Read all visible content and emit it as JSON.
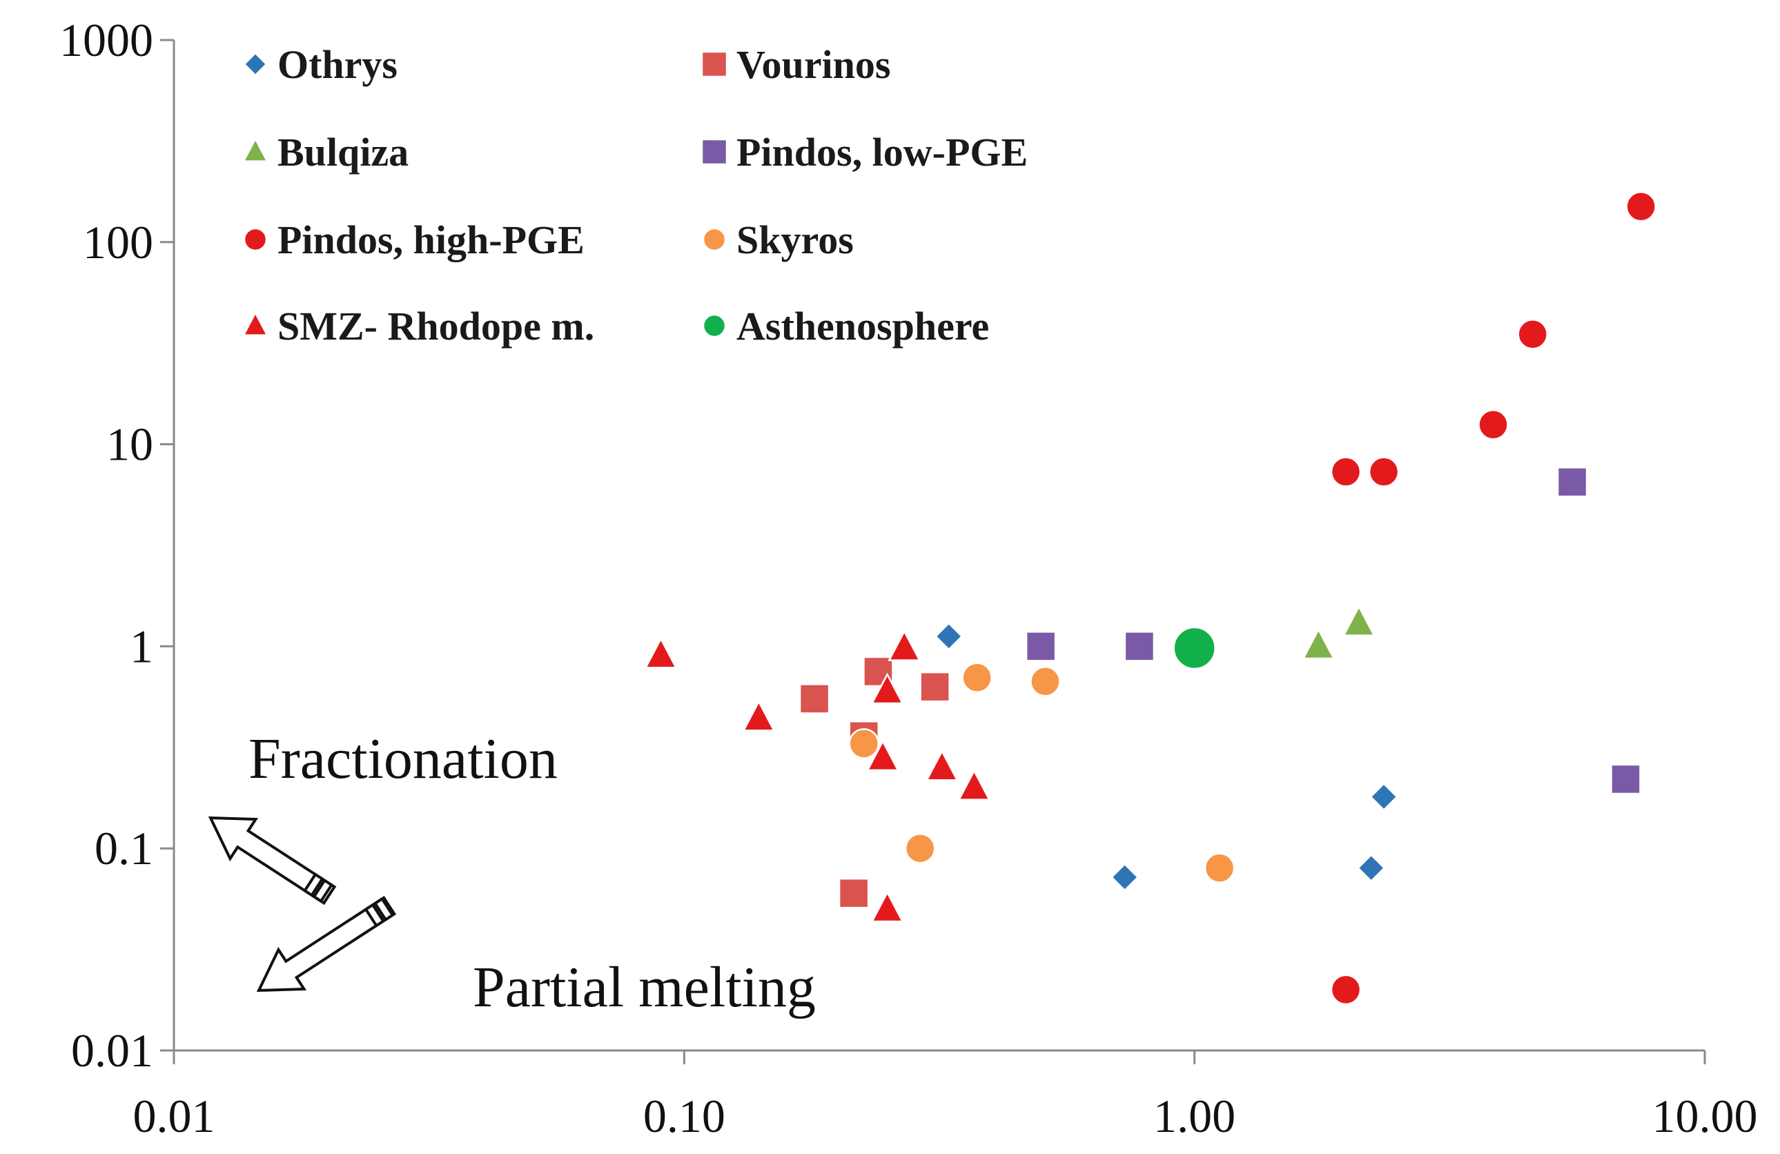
{
  "chart_data": {
    "type": "scatter",
    "title": "",
    "xlabel": "",
    "ylabel": "",
    "x_scale": "log",
    "y_scale": "log",
    "xlim": [
      0.01,
      10
    ],
    "ylim": [
      0.01,
      1000
    ],
    "x_ticks": [
      0.01,
      0.1,
      1,
      10
    ],
    "x_tick_labels": [
      "0.01",
      "0.10",
      "1.00",
      "10.00"
    ],
    "y_ticks": [
      0.01,
      0.1,
      1,
      10,
      100,
      1000
    ],
    "y_tick_labels": [
      "0.01",
      "0.1",
      "1",
      "10",
      "100",
      "1000"
    ],
    "grid": false,
    "legend_position": "top-left",
    "series": [
      {
        "name": "Othrys",
        "marker": "diamond",
        "color": "#2e75b6",
        "points": [
          [
            0.33,
            1.12
          ],
          [
            0.73,
            0.072
          ],
          [
            2.35,
            0.18
          ],
          [
            2.22,
            0.08
          ]
        ]
      },
      {
        "name": "Vourinos",
        "marker": "square",
        "color": "#d9534f",
        "points": [
          [
            0.18,
            0.55
          ],
          [
            0.24,
            0.75
          ],
          [
            0.31,
            0.63
          ],
          [
            0.225,
            0.36
          ],
          [
            0.215,
            0.06
          ]
        ]
      },
      {
        "name": "Bulqiza",
        "marker": "triangle",
        "color": "#7fb24c",
        "points": [
          [
            1.75,
            1.0
          ],
          [
            2.1,
            1.3
          ]
        ]
      },
      {
        "name": "Pindos, low-PGE",
        "marker": "square",
        "color": "#7a5aa6",
        "points": [
          [
            0.5,
            1.0
          ],
          [
            0.78,
            1.0
          ],
          [
            5.5,
            6.5
          ],
          [
            7.0,
            0.22
          ]
        ]
      },
      {
        "name": "Pindos, high-PGE",
        "marker": "circle",
        "color": "#e31a1c",
        "points": [
          [
            1.98,
            7.3
          ],
          [
            2.35,
            7.3
          ],
          [
            3.85,
            12.5
          ],
          [
            4.6,
            35
          ],
          [
            7.5,
            150
          ],
          [
            1.98,
            0.02
          ]
        ]
      },
      {
        "name": "Skyros",
        "marker": "circle",
        "color": "#f79646",
        "points": [
          [
            0.375,
            0.7
          ],
          [
            0.51,
            0.67
          ],
          [
            0.225,
            0.33
          ],
          [
            0.29,
            0.1
          ],
          [
            1.12,
            0.08
          ]
        ]
      },
      {
        "name": "SMZ- Rhodope m.",
        "marker": "triangle",
        "color": "#e31a1c",
        "points": [
          [
            0.09,
            0.9
          ],
          [
            0.14,
            0.44
          ],
          [
            0.27,
            0.98
          ],
          [
            0.25,
            0.6
          ],
          [
            0.245,
            0.28
          ],
          [
            0.32,
            0.25
          ],
          [
            0.37,
            0.2
          ],
          [
            0.25,
            0.05
          ]
        ]
      },
      {
        "name": "Asthenosphere",
        "marker": "circle",
        "color": "#12b04a",
        "points": [
          [
            1.0,
            0.98
          ]
        ]
      }
    ],
    "annotations": [
      "Fractionation",
      "Partial melting"
    ]
  }
}
